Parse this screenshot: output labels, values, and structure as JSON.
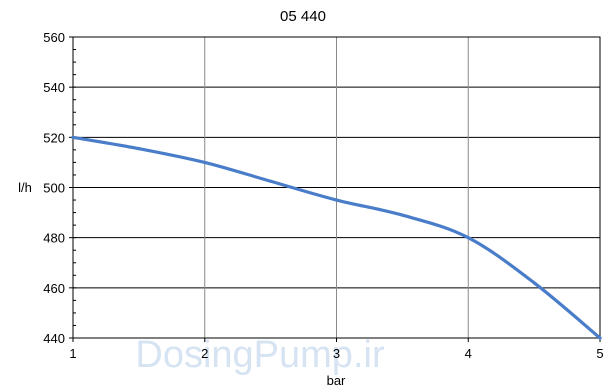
{
  "chart_data": {
    "type": "line",
    "title": "05 440",
    "xlabel": "bar",
    "ylabel": "l/h",
    "x": [
      1,
      1.5,
      2,
      2.5,
      3,
      3.5,
      4,
      4.5,
      5
    ],
    "series": [
      {
        "values": [
          520,
          515.5,
          510,
          502.5,
          495,
          489,
          480,
          462,
          440
        ],
        "color": "#4a7dc9"
      }
    ],
    "xlim": [
      1,
      5
    ],
    "ylim": [
      440,
      560
    ],
    "xticks": [
      "1",
      "2",
      "3",
      "4",
      "5"
    ],
    "yticks": [
      "440",
      "460",
      "480",
      "500",
      "520",
      "540",
      "560"
    ],
    "grid": true,
    "watermark": "DosingPump.ir"
  }
}
